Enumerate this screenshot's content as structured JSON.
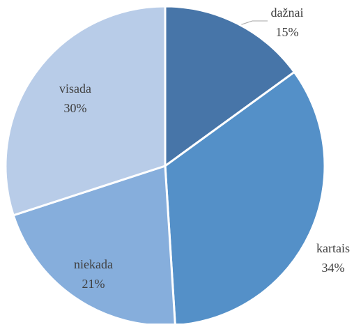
{
  "chart_data": {
    "type": "pie",
    "categories": [
      "dažnai",
      "kartais",
      "niekada",
      "visada"
    ],
    "values": [
      15,
      34,
      21,
      30
    ],
    "value_labels": [
      "15%",
      "34%",
      "21%",
      "30%"
    ],
    "colors": [
      "#4775a8",
      "#5490c8",
      "#86aedc",
      "#b8cce8"
    ]
  }
}
